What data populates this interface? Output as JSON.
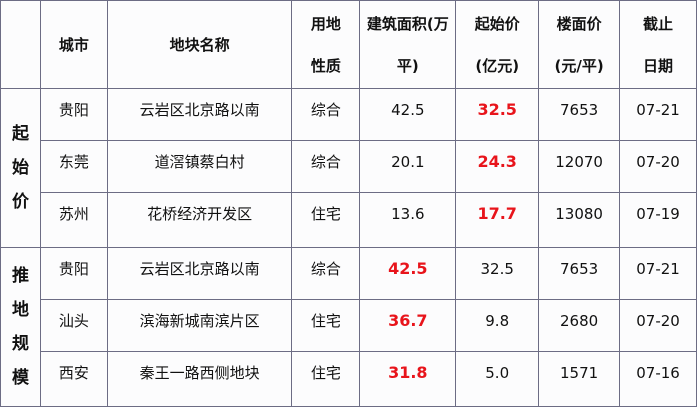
{
  "headers": {
    "group": "",
    "city": "城市",
    "name": "地块名称",
    "nature": [
      "用地",
      "性质"
    ],
    "area": [
      "建筑面积(万",
      "平)"
    ],
    "start_price": [
      "起始价",
      "(亿元)"
    ],
    "floor_price": [
      "楼面价",
      "(元/平)"
    ],
    "date": [
      "截止",
      "日期"
    ]
  },
  "highlight_color": "#e8141b",
  "groups": [
    {
      "label": [
        "起",
        "始",
        "价"
      ],
      "rows": [
        {
          "city": "贵阳",
          "name": "云岩区北京路以南",
          "nature": "综合",
          "area": "42.5",
          "start_price": "32.5",
          "floor_price": "7653",
          "date": "07-21",
          "highlight": "start_price"
        },
        {
          "city": "东莞",
          "name": "道滘镇蔡白村",
          "nature": "综合",
          "area": "20.1",
          "start_price": "24.3",
          "floor_price": "12070",
          "date": "07-20",
          "highlight": "start_price"
        },
        {
          "city": "苏州",
          "name": "花桥经济开发区",
          "nature": "住宅",
          "area": "13.6",
          "start_price": "17.7",
          "floor_price": "13080",
          "date": "07-19",
          "highlight": "start_price"
        }
      ]
    },
    {
      "label": [
        "推",
        "地",
        "规",
        "模"
      ],
      "rows": [
        {
          "city": "贵阳",
          "name": "云岩区北京路以南",
          "nature": "综合",
          "area": "42.5",
          "start_price": "32.5",
          "floor_price": "7653",
          "date": "07-21",
          "highlight": "area"
        },
        {
          "city": "汕头",
          "name": "滨海新城南滨片区",
          "nature": "住宅",
          "area": "36.7",
          "start_price": "9.8",
          "floor_price": "2680",
          "date": "07-20",
          "highlight": "area"
        },
        {
          "city": "西安",
          "name": "秦王一路西侧地块",
          "nature": "住宅",
          "area": "31.8",
          "start_price": "5.0",
          "floor_price": "1571",
          "date": "07-16",
          "highlight": "area"
        }
      ]
    }
  ]
}
